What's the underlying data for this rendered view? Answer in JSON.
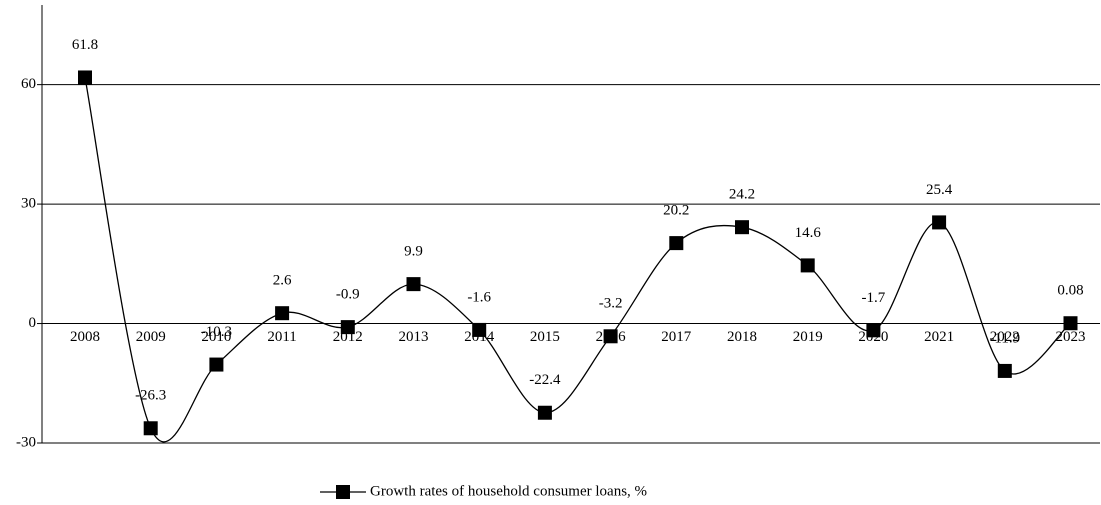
{
  "chart_data": {
    "type": "line",
    "categories": [
      "2008",
      "2009",
      "2010",
      "2011",
      "2012",
      "2013",
      "2014",
      "2015",
      "2016",
      "2017",
      "2018",
      "2019",
      "2020",
      "2021",
      "2022",
      "2023"
    ],
    "series": [
      {
        "name": "Growth rates of household consumer loans, %",
        "color": "#000000",
        "values": [
          61.8,
          -26.3,
          -10.3,
          2.6,
          -0.9,
          9.9,
          -1.6,
          -22.4,
          -3.2,
          20.2,
          24.2,
          14.6,
          -1.7,
          25.4,
          -11.9,
          0.08
        ]
      }
    ],
    "ylim": [
      -30,
      80
    ],
    "yticks": [
      -30,
      0,
      30,
      60
    ],
    "grid": true,
    "smooth": true,
    "legend": "bottom"
  }
}
